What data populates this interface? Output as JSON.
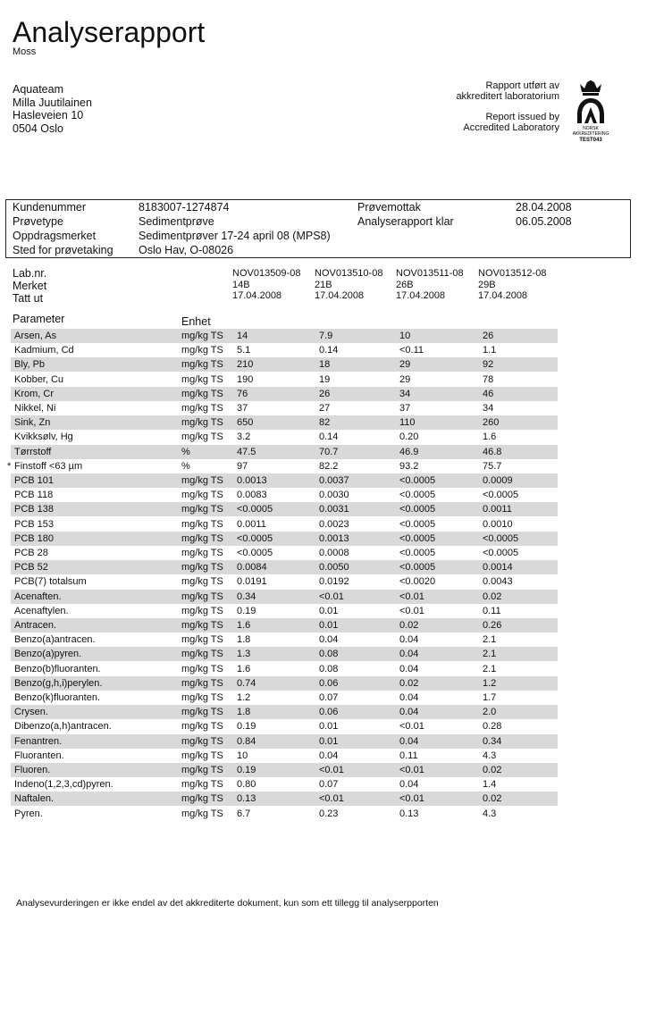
{
  "header": {
    "title": "Analyserapport",
    "subtitle": "Moss",
    "address": [
      "Aquateam",
      "Milla Juutilainen",
      "Hasleveien 10",
      "0504  Oslo"
    ],
    "accreditation": [
      "Rapport utført av",
      "akkreditert laboratorium",
      "Report issued by",
      "Accredited Laboratory"
    ],
    "logo": [
      "NORSK",
      "AKKREDITERING",
      "TEST043"
    ]
  },
  "info": {
    "left": [
      [
        "Kundenummer",
        "8183007-1274874"
      ],
      [
        "Prøvetype",
        "Sedimentprøve"
      ],
      [
        "Oppdragsmerket",
        "Sedimentprøver 17-24 april 08  (MPS8)"
      ],
      [
        "Sted for prøvetaking",
        "Oslo Hav, O-08026"
      ]
    ],
    "right": [
      [
        "Prøvemottak",
        "28.04.2008"
      ],
      [
        "Analyserapport klar",
        "06.05.2008"
      ]
    ]
  },
  "samples": {
    "labels": [
      "Lab.nr.",
      "Merket",
      "Tatt ut"
    ],
    "columns": [
      [
        "NOV013509-08",
        "14B",
        "17.04.2008"
      ],
      [
        "NOV013510-08",
        "21B",
        "17.04.2008"
      ],
      [
        "NOV013511-08",
        "26B",
        "17.04.2008"
      ],
      [
        "NOV013512-08",
        "29B",
        "17.04.2008"
      ]
    ]
  },
  "table": {
    "headers": [
      "Parameter",
      "Enhet"
    ],
    "rows": [
      {
        "name": "Arsen,  As",
        "unit": "mg/kg TS",
        "values": [
          "14",
          "7.9",
          "10",
          "26"
        ]
      },
      {
        "name": "Kadmium, Cd",
        "unit": "mg/kg TS",
        "values": [
          "5.1",
          "0.14",
          "<0.11",
          "1.1"
        ]
      },
      {
        "name": "Bly, Pb",
        "unit": "mg/kg TS",
        "values": [
          "210",
          "18",
          "29",
          "92"
        ]
      },
      {
        "name": "Kobber, Cu",
        "unit": "mg/kg TS",
        "values": [
          "190",
          "19",
          "29",
          "78"
        ]
      },
      {
        "name": "Krom, Cr",
        "unit": "mg/kg TS",
        "values": [
          "76",
          "26",
          "34",
          "46"
        ]
      },
      {
        "name": "Nikkel, Ni",
        "unit": "mg/kg TS",
        "values": [
          "37",
          "27",
          "37",
          "34"
        ]
      },
      {
        "name": "Sink, Zn",
        "unit": "mg/kg TS",
        "values": [
          "650",
          "82",
          "110",
          "260"
        ]
      },
      {
        "name": "Kvikksølv,  Hg",
        "unit": "mg/kg TS",
        "values": [
          "3.2",
          "0.14",
          "0.20",
          "1.6"
        ]
      },
      {
        "name": "Tørrstoff",
        "unit": "%",
        "values": [
          "47.5",
          "70.7",
          "46.9",
          "46.8"
        ]
      },
      {
        "flag": "*",
        "name": "Finstoff <63 µm",
        "unit": "%",
        "values": [
          "97",
          "82.2",
          "93.2",
          "75.7"
        ]
      },
      {
        "name": "PCB  101",
        "unit": "mg/kg TS",
        "values": [
          "0.0013",
          "0.0037",
          "<0.0005",
          "0.0009"
        ]
      },
      {
        "name": "PCB  118",
        "unit": "mg/kg TS",
        "values": [
          "0.0083",
          "0.0030",
          "<0.0005",
          "<0.0005"
        ]
      },
      {
        "name": "PCB  138",
        "unit": "mg/kg TS",
        "values": [
          "<0.0005",
          "0.0031",
          "<0.0005",
          "0.0011"
        ]
      },
      {
        "name": "PCB  153",
        "unit": "mg/kg TS",
        "values": [
          "0.0011",
          "0.0023",
          "<0.0005",
          "0.0010"
        ]
      },
      {
        "name": "PCB  180",
        "unit": "mg/kg TS",
        "values": [
          "<0.0005",
          "0.0013",
          "<0.0005",
          "<0.0005"
        ]
      },
      {
        "name": "PCB  28",
        "unit": "mg/kg TS",
        "values": [
          "<0.0005",
          "0.0008",
          "<0.0005",
          "<0.0005"
        ]
      },
      {
        "name": "PCB  52",
        "unit": "mg/kg TS",
        "values": [
          "0.0084",
          "0.0050",
          "<0.0005",
          "0.0014"
        ]
      },
      {
        "name": "PCB(7) totalsum",
        "unit": "mg/kg TS",
        "values": [
          "0.0191",
          "0.0192",
          "<0.0020",
          "0.0043"
        ]
      },
      {
        "name": "Acenaften.",
        "unit": "mg/kg TS",
        "values": [
          "0.34",
          "<0.01",
          "<0.01",
          "0.02"
        ]
      },
      {
        "name": "Acenaftylen.",
        "unit": "mg/kg TS",
        "values": [
          "0.19",
          "0.01",
          "<0.01",
          "0.11"
        ]
      },
      {
        "name": "Antracen.",
        "unit": "mg/kg TS",
        "values": [
          "1.6",
          "0.01",
          "0.02",
          "0.26"
        ]
      },
      {
        "name": "Benzo(a)antracen.",
        "unit": "mg/kg TS",
        "values": [
          "1.8",
          "0.04",
          "0.04",
          "2.1"
        ]
      },
      {
        "name": "Benzo(a)pyren.",
        "unit": "mg/kg TS",
        "values": [
          "1.3",
          "0.08",
          "0.04",
          "2.1"
        ]
      },
      {
        "name": "Benzo(b)fluoranten.",
        "unit": "mg/kg TS",
        "values": [
          "1.6",
          "0.08",
          "0.04",
          "2.1"
        ]
      },
      {
        "name": "Benzo(g,h,i)perylen.",
        "unit": "mg/kg TS",
        "values": [
          "0.74",
          "0.06",
          "0.02",
          "1.2"
        ]
      },
      {
        "name": "Benzo(k)fluoranten.",
        "unit": "mg/kg TS",
        "values": [
          "1.2",
          "0.07",
          "0.04",
          "1.7"
        ]
      },
      {
        "name": "Crysen.",
        "unit": "mg/kg TS",
        "values": [
          "1.8",
          "0.06",
          "0.04",
          "2.0"
        ]
      },
      {
        "name": "Dibenzo(a,h)antracen.",
        "unit": "mg/kg TS",
        "values": [
          "0.19",
          "0.01",
          "<0.01",
          "0.28"
        ]
      },
      {
        "name": "Fenantren.",
        "unit": "mg/kg TS",
        "values": [
          "0.84",
          "0.01",
          "0.04",
          "0.34"
        ]
      },
      {
        "name": "Fluoranten.",
        "unit": "mg/kg TS",
        "values": [
          "10",
          "0.04",
          "0.11",
          "4.3"
        ]
      },
      {
        "name": "Fluoren.",
        "unit": "mg/kg TS",
        "values": [
          "0.19",
          "<0.01",
          "<0.01",
          "0.02"
        ]
      },
      {
        "name": "Indeno(1,2,3,cd)pyren.",
        "unit": "mg/kg TS",
        "values": [
          "0.80",
          "0.07",
          "0.04",
          "1.4"
        ]
      },
      {
        "name": "Naftalen.",
        "unit": "mg/kg TS",
        "values": [
          "0.13",
          "<0.01",
          "<0.01",
          "0.02"
        ]
      },
      {
        "name": "Pyren.",
        "unit": "mg/kg TS",
        "values": [
          "6.7",
          "0.23",
          "0.13",
          "4.3"
        ]
      }
    ]
  },
  "footer": "Analysevurderingen er ikke endel av det akkrediterte dokument, kun som ett tillegg til analyserpporten"
}
